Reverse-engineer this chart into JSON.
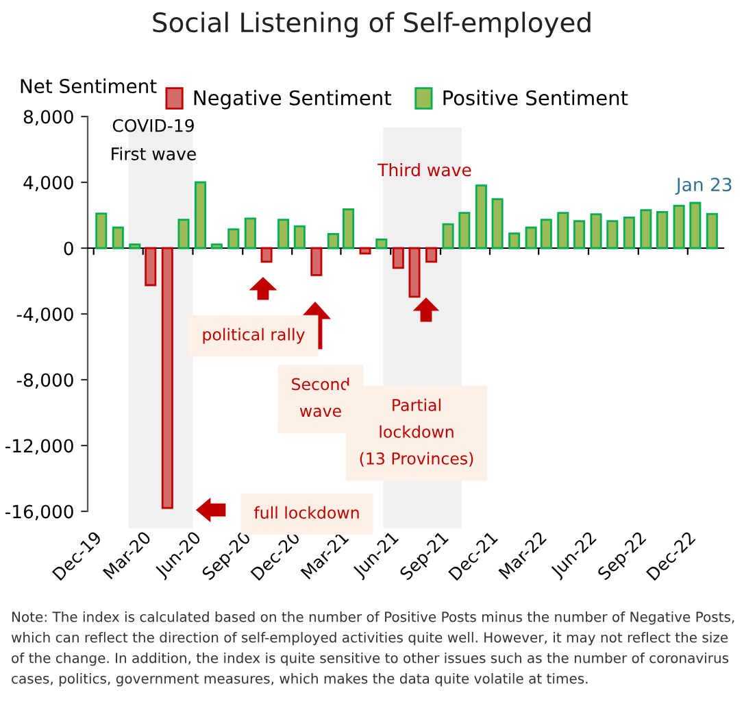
{
  "chart_data": {
    "type": "bar",
    "title": "Social Listening of Self-employed",
    "ylabel": "Net Sentiment",
    "x": [
      "2019-12-15",
      "2020-01-15",
      "2020-02-15",
      "2020-03-15",
      "2020-04-15",
      "2020-05-15",
      "2020-06-15",
      "2020-07-15",
      "2020-08-15",
      "2020-09-15",
      "2020-10-15",
      "2020-11-15",
      "2020-12-15",
      "2021-01-15",
      "2021-02-15",
      "2021-03-15",
      "2021-04-15",
      "2021-05-15",
      "2021-06-15",
      "2021-07-15",
      "2021-08-15",
      "2021-09-15",
      "2021-10-15",
      "2021-11-15",
      "2021-12-15",
      "2022-01-15",
      "2022-02-15",
      "2022-03-15",
      "2022-04-15",
      "2022-05-15",
      "2022-06-15",
      "2022-07-15",
      "2022-08-15",
      "2022-09-15",
      "2022-10-15",
      "2022-11-15",
      "2022-12-15",
      "2023-01-15"
    ],
    "series": [
      {
        "name": "Negative Sentiment",
        "color": "#d46a6a",
        "values": [
          null,
          null,
          null,
          -2250,
          -15800,
          null,
          null,
          null,
          null,
          null,
          -830,
          null,
          null,
          -1640,
          null,
          null,
          -330,
          null,
          -1200,
          -2950,
          -830,
          null,
          null,
          null,
          null,
          null,
          null,
          null,
          null,
          null,
          null,
          null,
          null,
          null,
          null,
          null,
          null,
          null
        ]
      },
      {
        "name": "Positive Sentiment",
        "color": "#9bbb59",
        "values": [
          2100,
          1250,
          220,
          null,
          null,
          1720,
          4000,
          220,
          1140,
          1800,
          null,
          1720,
          1330,
          null,
          860,
          2360,
          null,
          530,
          null,
          null,
          null,
          1450,
          2140,
          3810,
          2970,
          890,
          1250,
          1720,
          2140,
          1640,
          2060,
          1640,
          1860,
          2310,
          2190,
          2580,
          2750,
          2080
        ]
      }
    ],
    "xlim": [
      "2019-11-20",
      "2023-02-05"
    ],
    "xticks": [
      {
        "value": "2019-12-01",
        "label": "Dec-19"
      },
      {
        "value": "2020-03-01",
        "label": "Mar-20"
      },
      {
        "value": "2020-06-01",
        "label": "Jun-20"
      },
      {
        "value": "2020-09-01",
        "label": "Sep-20"
      },
      {
        "value": "2020-12-01",
        "label": "Dec-20"
      },
      {
        "value": "2021-03-01",
        "label": "Mar-21"
      },
      {
        "value": "2021-06-01",
        "label": "Jun-21"
      },
      {
        "value": "2021-09-01",
        "label": "Sep-21"
      },
      {
        "value": "2021-12-01",
        "label": "Dec-21"
      },
      {
        "value": "2022-03-01",
        "label": "Mar-22"
      },
      {
        "value": "2022-06-01",
        "label": "Jun-22"
      },
      {
        "value": "2022-09-01",
        "label": "Sep-22"
      },
      {
        "value": "2022-12-01",
        "label": "Dec-22"
      }
    ],
    "ylim": [
      -16000,
      8000
    ],
    "yticks": [
      {
        "value": 8000,
        "label": "8,000"
      },
      {
        "value": 4000,
        "label": "4,000"
      },
      0,
      {
        "value": -4000,
        "label": "-4,000"
      },
      {
        "value": -8000,
        "label": "-8,000"
      },
      {
        "value": -12000,
        "label": "-12,000"
      },
      {
        "value": -16000,
        "label": "-16,000"
      }
    ],
    "bands": [
      {
        "axis": "x",
        "from": "2020-02-05",
        "to": "2020-05-30",
        "label": "COVID-19\nFirst wave",
        "color": "#f0f0f0"
      },
      {
        "axis": "x",
        "from": "2021-05-20",
        "to": "2021-10-08",
        "label": "Third wave",
        "color": "#f0f0f0"
      }
    ],
    "annotations": [
      {
        "text": "Jan 23",
        "x": "2023-01-15",
        "y": 2080
      },
      "political rally",
      "Second\nwave",
      "Partial\nlockdown\n(13 Provinces)",
      "full lockdown",
      "Note: The index is calculated based on the number of Positive Posts minus the number of Negative Posts, which can reflect the direction of self-employed activities quite well. However, it may not reflect the size of the change. In addition, the index is quite sensitive to other issues such as the number of coronavirus cases, politics, government measures, which makes the data quite volatile at times."
    ],
    "legend": "top"
  }
}
